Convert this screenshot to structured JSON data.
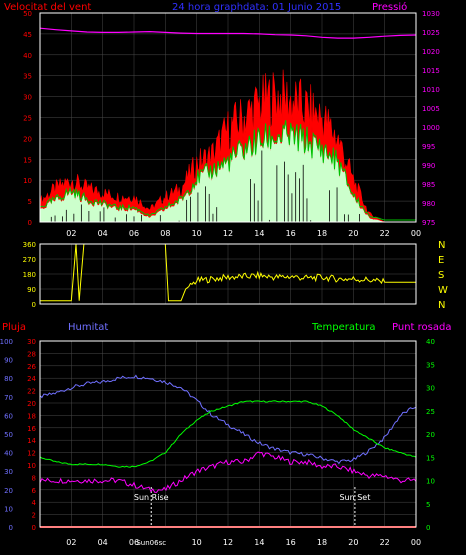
{
  "header": {
    "wind_speed_label": "Velocitat del vent",
    "title": "24 hora graphdata: 01 Junio 2015",
    "pressure_label": "Pressió"
  },
  "bottom_header": {
    "rain_label": "Pluja",
    "humidity_label": "Humitat",
    "temperature_label": "Temperatura",
    "dewpoint_label": "Punt rosada"
  },
  "annotations": {
    "sunrise": "Sun Rise",
    "sunset": "Sun Set",
    "sunrise_tick": "Sun06sc"
  },
  "x_ticks": [
    "02",
    "04",
    "06",
    "08",
    "10",
    "12",
    "14",
    "16",
    "18",
    "20",
    "22",
    "00"
  ],
  "bottom_x_ticks": [
    "02",
    "04",
    "06",
    "",
    "10",
    "12",
    "14",
    "16",
    "18",
    "20",
    "22",
    "00"
  ],
  "colors": {
    "background": "#000000",
    "frame": "#ffffff",
    "grid": "#4a4a4a",
    "wind_gust": "#ff0000",
    "wind_avg": "#00c000",
    "wind_light": "#ccffcc",
    "pressure": "#ff00ff",
    "direction": "#ffff00",
    "humidity": "#7070ff",
    "temperature": "#00ff00",
    "dewpoint": "#ff00ff",
    "rain": "#ff0000"
  },
  "chart_data": [
    {
      "type": "area",
      "name": "wind-speed-and-pressure",
      "title": "24 hora graphdata: 01 Junio 2015",
      "ylabel": "Velocitat del vent",
      "y2label": "Pressió",
      "ylim": [
        0,
        50
      ],
      "y_ticks": [
        0,
        5,
        10,
        15,
        20,
        25,
        30,
        35,
        40,
        45,
        50
      ],
      "y2lim": [
        975,
        1030
      ],
      "y2_ticks": [
        975,
        980,
        985,
        990,
        995,
        1000,
        1005,
        1010,
        1015,
        1020,
        1025,
        1030
      ],
      "x_hours": [
        0,
        1,
        2,
        3,
        4,
        5,
        6,
        7,
        8,
        9,
        10,
        11,
        12,
        13,
        14,
        15,
        16,
        17,
        18,
        19,
        20,
        21,
        22,
        23,
        24
      ],
      "series": [
        {
          "name": "gust",
          "values": [
            5,
            8,
            10,
            8,
            7,
            6,
            6,
            3,
            6,
            8,
            14,
            16,
            22,
            25,
            28,
            30,
            29,
            27,
            25,
            20,
            10,
            2,
            0,
            0,
            0
          ]
        },
        {
          "name": "average",
          "values": [
            3,
            5,
            7,
            5,
            4,
            3,
            3,
            1,
            3,
            5,
            10,
            12,
            14,
            17,
            19,
            20,
            20,
            19,
            17,
            14,
            6,
            1,
            0,
            0,
            0
          ]
        },
        {
          "name": "pressure",
          "values": [
            1026,
            1025.6,
            1025.3,
            1025.0,
            1024.9,
            1024.9,
            1025.0,
            1025.1,
            1024.9,
            1024.7,
            1024.6,
            1024.6,
            1024.6,
            1024.6,
            1024.5,
            1024.3,
            1024.2,
            1024.0,
            1023.6,
            1023.4,
            1023.4,
            1023.6,
            1023.9,
            1024.1,
            1024.2
          ]
        }
      ]
    },
    {
      "type": "line",
      "name": "wind-direction",
      "ylim": [
        0,
        360
      ],
      "y_ticks": [
        0,
        90,
        180,
        270,
        360
      ],
      "y2_labels": [
        "N",
        "W",
        "S",
        "E",
        "N"
      ],
      "x_hours": [
        0,
        1,
        2,
        2.3,
        2.5,
        2.8,
        3,
        3.5,
        4,
        5,
        6,
        7,
        8,
        8.2,
        9,
        9.3,
        10,
        11,
        12,
        13,
        14,
        15,
        16,
        17,
        18,
        19,
        20,
        21,
        22,
        23,
        24
      ],
      "series": [
        {
          "name": "direction",
          "values": [
            20,
            20,
            20,
            360,
            20,
            360,
            360,
            360,
            360,
            360,
            360,
            360,
            360,
            20,
            20,
            90,
            140,
            150,
            160,
            165,
            170,
            160,
            165,
            155,
            160,
            150,
            150,
            145,
            130,
            130,
            130
          ]
        }
      ]
    },
    {
      "type": "line",
      "name": "rain-humidity-temperature-dewpoint",
      "x_hours": [
        0,
        1,
        2,
        3,
        4,
        5,
        6,
        7,
        8,
        9,
        10,
        11,
        12,
        13,
        14,
        15,
        16,
        17,
        18,
        19,
        20,
        21,
        22,
        23,
        24
      ],
      "humidity_ylim": [
        0,
        100
      ],
      "humidity_ticks": [
        0,
        10,
        20,
        30,
        40,
        50,
        60,
        70,
        80,
        90,
        100
      ],
      "rain_ylim": [
        0,
        30
      ],
      "rain_ticks": [
        0,
        2,
        4,
        6,
        8,
        10,
        12,
        14,
        16,
        18,
        20,
        22,
        24,
        26,
        28,
        30
      ],
      "temp_ylim": [
        0,
        40
      ],
      "temp_ticks": [
        0,
        5,
        10,
        15,
        20,
        25,
        30,
        35,
        40
      ],
      "sunrise_hour": 7.1,
      "sunset_hour": 20.1,
      "series": [
        {
          "name": "humidity",
          "axis": "humidity",
          "values": [
            70,
            72,
            75,
            77,
            78,
            80,
            81,
            80,
            78,
            75,
            68,
            60,
            55,
            50,
            45,
            42,
            40,
            39,
            37,
            35,
            36,
            41,
            48,
            60,
            65
          ]
        },
        {
          "name": "temperature",
          "axis": "temp",
          "values": [
            15,
            14,
            13.5,
            13.5,
            13.5,
            13,
            13,
            14,
            16,
            20,
            23,
            25,
            26,
            27,
            27,
            27,
            27,
            27,
            26,
            24,
            21,
            19,
            17,
            16,
            15
          ]
        },
        {
          "name": "dewpoint",
          "axis": "temp",
          "values": [
            10,
            10,
            10,
            10,
            10,
            10,
            9,
            8,
            8,
            10,
            12,
            13,
            14,
            14,
            16,
            15,
            14,
            14,
            13,
            13,
            12,
            11,
            11,
            10,
            10
          ]
        },
        {
          "name": "rain",
          "axis": "rain",
          "values": [
            0,
            0,
            0,
            0,
            0,
            0,
            0,
            0,
            0,
            0,
            0,
            0,
            0,
            0,
            0,
            0,
            0,
            0,
            0,
            0,
            0,
            0,
            0,
            0,
            0
          ]
        }
      ]
    }
  ]
}
